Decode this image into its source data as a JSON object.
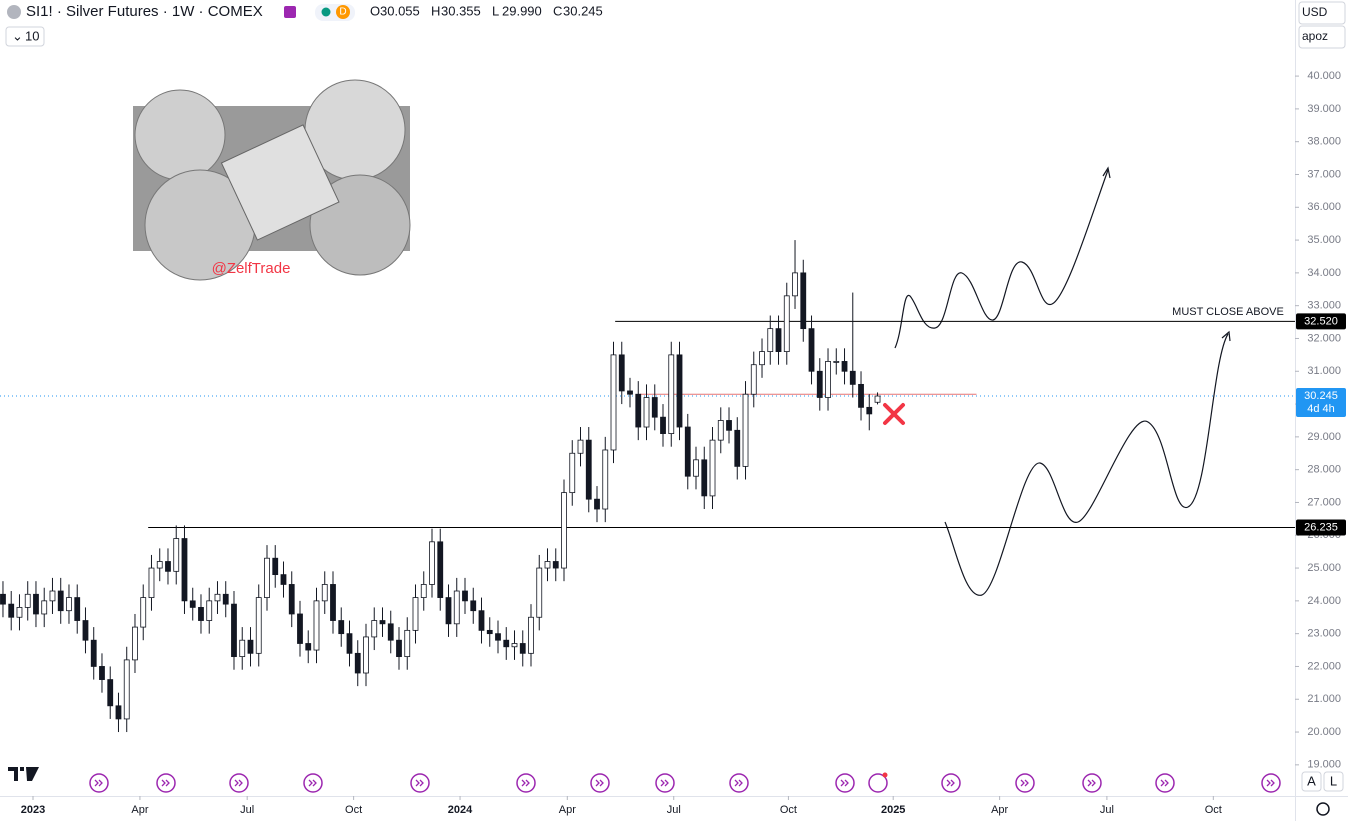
{
  "header": {
    "symbol": "SI1! · Silver Futures · 1W · COMEX",
    "badge": "D",
    "ohlc": [
      {
        "k": "O",
        "v": "30.055"
      },
      {
        "k": "H",
        "v": "30.355"
      },
      {
        "k": "L",
        "v": "29.990"
      },
      {
        "k": "C",
        "v": "30.245"
      }
    ],
    "interval": "10",
    "currency": "USD",
    "scale_mode": "apoz",
    "buttons": [
      "A",
      "L"
    ]
  },
  "chart_data": {
    "type": "candlestick",
    "open": [
      24.2,
      23.9,
      23.5,
      23.8,
      24.2,
      23.6,
      24.0,
      24.3,
      23.7,
      24.1,
      23.4,
      22.8,
      22.0,
      21.6,
      20.8,
      20.4,
      22.2,
      23.2,
      24.1,
      25.0,
      25.2,
      24.9,
      25.9,
      24.0,
      23.8,
      23.4,
      24.0,
      24.2,
      23.9,
      22.3,
      22.8,
      22.4,
      24.1,
      25.3,
      24.8,
      24.5,
      23.6,
      22.7,
      22.5,
      24.0,
      24.5,
      23.4,
      23.0,
      22.4,
      21.8,
      22.9,
      23.4,
      23.3,
      22.8,
      22.3,
      23.1,
      24.1,
      24.5,
      25.8,
      24.1,
      23.3,
      24.3,
      24.0,
      23.7,
      23.1,
      23.0,
      22.8,
      22.6,
      22.7,
      22.4,
      23.5,
      25.0,
      25.2,
      25.0,
      27.3,
      28.5,
      28.9,
      27.1,
      26.8,
      28.6,
      31.5,
      30.4,
      30.3,
      29.3,
      30.2,
      29.6,
      29.1,
      31.5,
      29.3,
      27.8,
      28.3,
      27.2,
      28.9,
      29.5,
      29.2,
      28.1,
      30.3,
      31.2,
      31.6,
      32.3,
      31.6,
      33.3,
      34.0,
      32.3,
      31.0,
      30.2,
      31.3,
      31.3,
      31.0,
      30.6,
      29.9,
      30.055
    ],
    "high": [
      24.6,
      24.3,
      24.2,
      24.6,
      24.6,
      24.4,
      24.7,
      24.7,
      24.5,
      24.5,
      23.8,
      23.2,
      22.4,
      22.0,
      21.2,
      22.6,
      23.6,
      24.5,
      25.4,
      25.6,
      25.6,
      26.3,
      26.3,
      24.4,
      24.2,
      24.4,
      24.6,
      24.6,
      24.3,
      23.2,
      23.2,
      24.5,
      25.7,
      25.7,
      25.2,
      24.9,
      24.0,
      23.1,
      24.4,
      24.9,
      24.9,
      23.8,
      23.4,
      22.8,
      23.3,
      23.8,
      23.8,
      23.7,
      23.2,
      23.5,
      24.5,
      24.9,
      26.2,
      26.2,
      24.5,
      24.7,
      24.7,
      24.4,
      24.1,
      23.5,
      23.4,
      23.2,
      23.1,
      23.1,
      23.9,
      25.4,
      25.6,
      25.6,
      27.7,
      28.9,
      29.3,
      29.3,
      27.5,
      29.0,
      31.9,
      31.9,
      30.8,
      30.7,
      30.6,
      30.6,
      30.0,
      31.9,
      31.9,
      29.7,
      28.7,
      28.7,
      29.3,
      29.9,
      29.9,
      29.6,
      30.7,
      31.6,
      32.0,
      32.7,
      32.7,
      33.7,
      35.0,
      34.4,
      32.7,
      31.4,
      31.7,
      31.7,
      31.7,
      33.4,
      31.0,
      30.3,
      30.355
    ],
    "low": [
      23.5,
      23.1,
      23.1,
      23.4,
      23.2,
      23.2,
      23.6,
      23.3,
      23.3,
      23.0,
      22.4,
      21.6,
      21.2,
      20.4,
      20.0,
      20.0,
      21.8,
      22.8,
      23.7,
      24.6,
      24.5,
      24.5,
      23.6,
      23.4,
      23.0,
      23.0,
      23.6,
      23.5,
      21.9,
      21.9,
      22.0,
      22.0,
      23.7,
      24.4,
      24.1,
      23.2,
      22.3,
      22.1,
      22.1,
      23.6,
      23.0,
      22.6,
      22.0,
      21.4,
      21.4,
      22.5,
      22.9,
      22.4,
      21.9,
      21.9,
      22.7,
      23.7,
      24.1,
      23.7,
      22.9,
      22.9,
      23.6,
      23.3,
      22.7,
      22.6,
      22.4,
      22.2,
      22.2,
      22.0,
      22.0,
      23.1,
      24.6,
      24.6,
      24.6,
      26.9,
      28.1,
      26.7,
      26.4,
      26.4,
      28.2,
      30.0,
      29.9,
      28.9,
      28.9,
      29.2,
      28.7,
      28.7,
      28.9,
      27.4,
      27.4,
      26.8,
      26.8,
      28.5,
      28.8,
      27.7,
      27.7,
      29.9,
      30.8,
      31.2,
      31.2,
      31.2,
      32.9,
      31.9,
      30.6,
      29.8,
      29.8,
      30.9,
      30.6,
      30.2,
      29.5,
      29.2,
      29.99
    ],
    "close": [
      23.9,
      23.5,
      23.8,
      24.2,
      23.6,
      24.0,
      24.3,
      23.7,
      24.1,
      23.4,
      22.8,
      22.0,
      21.6,
      20.8,
      20.4,
      22.2,
      23.2,
      24.1,
      25.0,
      25.2,
      24.9,
      25.9,
      24.0,
      23.8,
      23.4,
      24.0,
      24.2,
      23.9,
      22.3,
      22.8,
      22.4,
      24.1,
      25.3,
      24.8,
      24.5,
      23.6,
      22.7,
      22.5,
      24.0,
      24.5,
      23.4,
      23.0,
      22.4,
      21.8,
      22.9,
      23.4,
      23.3,
      22.8,
      22.3,
      23.1,
      24.1,
      24.5,
      25.8,
      24.1,
      23.3,
      24.3,
      24.0,
      23.7,
      23.1,
      23.0,
      22.8,
      22.6,
      22.7,
      22.4,
      23.5,
      25.0,
      25.2,
      25.0,
      27.3,
      28.5,
      28.9,
      27.1,
      26.8,
      28.6,
      31.5,
      30.4,
      30.3,
      29.3,
      30.2,
      29.6,
      29.1,
      31.5,
      29.3,
      27.8,
      28.3,
      27.2,
      28.9,
      29.5,
      29.2,
      28.1,
      30.3,
      31.2,
      31.6,
      32.3,
      31.6,
      33.3,
      34.0,
      32.3,
      31.0,
      30.2,
      31.3,
      31.3,
      31.0,
      30.6,
      29.9,
      29.7,
      30.245
    ],
    "xlim": [
      -0.36,
      156.6
    ],
    "xticks": [
      {
        "value": 3.64,
        "label": "2023"
      },
      {
        "value": 16.6,
        "label": "Apr"
      },
      {
        "value": 29.6,
        "label": "Jul"
      },
      {
        "value": 42.5,
        "label": "Oct"
      },
      {
        "value": 55.4,
        "label": "2024"
      },
      {
        "value": 68.4,
        "label": "Apr"
      },
      {
        "value": 81.3,
        "label": "Jul"
      },
      {
        "value": 95.2,
        "label": "Oct"
      },
      {
        "value": 107.9,
        "label": "2025"
      },
      {
        "value": 120.8,
        "label": "Apr"
      },
      {
        "value": 133.8,
        "label": "Jul"
      },
      {
        "value": 146.7,
        "label": "Oct"
      }
    ],
    "ylim": [
      18.05,
      42.32
    ],
    "yticks": [
      {
        "value": 19,
        "label": "19.000"
      },
      {
        "value": 20,
        "label": "20.000"
      },
      {
        "value": 21,
        "label": "21.000"
      },
      {
        "value": 22,
        "label": "22.000"
      },
      {
        "value": 23,
        "label": "23.000"
      },
      {
        "value": 24,
        "label": "24.000"
      },
      {
        "value": 25,
        "label": "25.000"
      },
      {
        "value": 26,
        "label": "26.000"
      },
      {
        "value": 27,
        "label": "27.000"
      },
      {
        "value": 28,
        "label": "28.000"
      },
      {
        "value": 29,
        "label": "29.000"
      },
      {
        "value": 30,
        "label": "30.000"
      },
      {
        "value": 31,
        "label": "31.000"
      },
      {
        "value": 32,
        "label": "32.000"
      },
      {
        "value": 33,
        "label": "33.000"
      },
      {
        "value": 34,
        "label": "34.000"
      },
      {
        "value": 35,
        "label": "35.000"
      },
      {
        "value": 36,
        "label": "36.000"
      },
      {
        "value": 37,
        "label": "37.000"
      },
      {
        "value": 38,
        "label": "38.000"
      },
      {
        "value": 39,
        "label": "39.000"
      },
      {
        "value": 40,
        "label": "40.000"
      }
    ],
    "levels": [
      {
        "value": 32.52,
        "label": "32.520",
        "from": 74.2,
        "color": "#000000"
      },
      {
        "value": 26.235,
        "label": "26.235",
        "from": 17.6,
        "color": "#000000"
      },
      {
        "value": 30.3,
        "from": 77.2,
        "to": 118,
        "color": "#e57373"
      }
    ],
    "last": {
      "value": 30.245,
      "label": "30.245",
      "countdown": "4d 4h",
      "color": "#2196f3"
    },
    "annotations": {
      "level_note": "MUST CLOSE ABOVE",
      "watermark": "@ZelfTrade"
    }
  }
}
